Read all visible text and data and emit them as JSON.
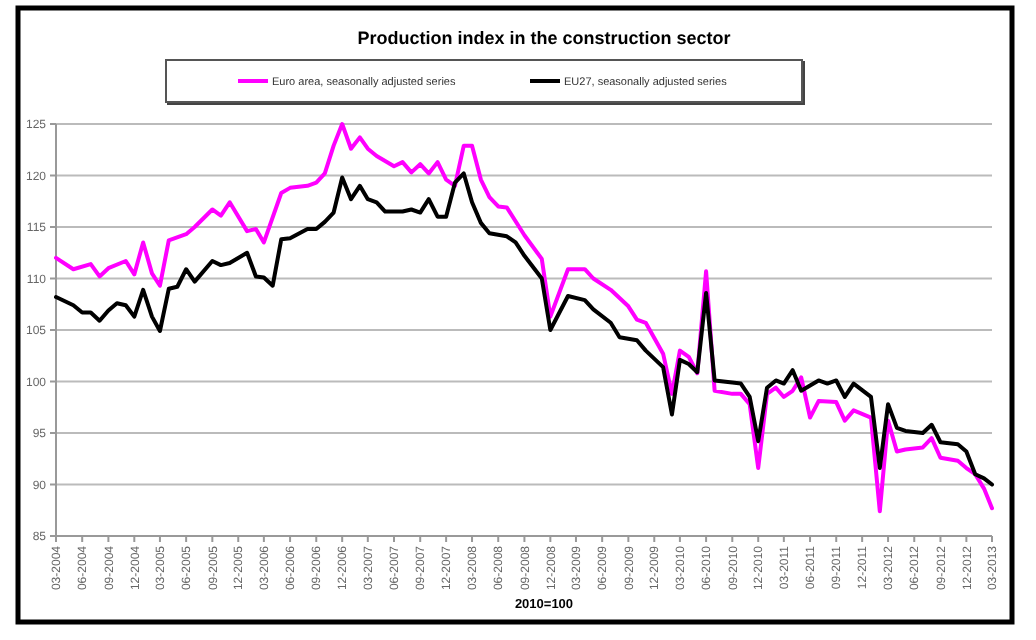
{
  "chart_data": {
    "type": "line",
    "title": "Production index in the construction sector",
    "xlabel": "2010=100",
    "legend": "top",
    "grid": "y",
    "line_style": "solid",
    "marker": "none",
    "xlim": [
      "2004-03",
      "2013-03"
    ],
    "xticks": [
      {
        "value": "2004-03",
        "label": "03-2004"
      },
      {
        "value": "2004-06",
        "label": "06-2004"
      },
      {
        "value": "2004-09",
        "label": "09-2004"
      },
      {
        "value": "2004-12",
        "label": "12-2004"
      },
      {
        "value": "2005-03",
        "label": "03-2005"
      },
      {
        "value": "2005-06",
        "label": "06-2005"
      },
      {
        "value": "2005-09",
        "label": "09-2005"
      },
      {
        "value": "2005-12",
        "label": "12-2005"
      },
      {
        "value": "2006-03",
        "label": "03-2006"
      },
      {
        "value": "2006-06",
        "label": "06-2006"
      },
      {
        "value": "2006-09",
        "label": "09-2006"
      },
      {
        "value": "2006-12",
        "label": "12-2006"
      },
      {
        "value": "2007-03",
        "label": "03-2007"
      },
      {
        "value": "2007-06",
        "label": "06-2007"
      },
      {
        "value": "2007-09",
        "label": "09-2007"
      },
      {
        "value": "2007-12",
        "label": "12-2007"
      },
      {
        "value": "2008-03",
        "label": "03-2008"
      },
      {
        "value": "2008-06",
        "label": "06-2008"
      },
      {
        "value": "2008-09",
        "label": "09-2008"
      },
      {
        "value": "2008-12",
        "label": "12-2008"
      },
      {
        "value": "2009-03",
        "label": "03-2009"
      },
      {
        "value": "2009-06",
        "label": "06-2009"
      },
      {
        "value": "2009-09",
        "label": "09-2009"
      },
      {
        "value": "2009-12",
        "label": "12-2009"
      },
      {
        "value": "2010-03",
        "label": "03-2010"
      },
      {
        "value": "2010-06",
        "label": "06-2010"
      },
      {
        "value": "2010-09",
        "label": "09-2010"
      },
      {
        "value": "2010-12",
        "label": "12-2010"
      },
      {
        "value": "2011-03",
        "label": "03-2011"
      },
      {
        "value": "2011-06",
        "label": "06-2011"
      },
      {
        "value": "2011-09",
        "label": "09-2011"
      },
      {
        "value": "2011-12",
        "label": "12-2011"
      },
      {
        "value": "2012-03",
        "label": "03-2012"
      },
      {
        "value": "2012-06",
        "label": "06-2012"
      },
      {
        "value": "2012-09",
        "label": "09-2012"
      },
      {
        "value": "2012-12",
        "label": "12-2012"
      },
      {
        "value": "2013-03",
        "label": "03-2013"
      }
    ],
    "ylim": [
      85,
      125
    ],
    "yticks": [
      85,
      90,
      95,
      100,
      105,
      110,
      115,
      120,
      125
    ],
    "series": [
      {
        "name": "Euro area, seasonally adjusted series",
        "color": "#ff00ff",
        "x": [
          "2004-03",
          "2004-05",
          "2004-07",
          "2004-08",
          "2004-09",
          "2004-11",
          "2004-12",
          "2005-01",
          "2005-02",
          "2005-03",
          "2005-04",
          "2005-06",
          "2005-07",
          "2005-09",
          "2005-10",
          "2005-11",
          "2006-01",
          "2006-02",
          "2006-03",
          "2006-05",
          "2006-06",
          "2006-08",
          "2006-09",
          "2006-10",
          "2006-11",
          "2006-12",
          "2007-01",
          "2007-02",
          "2007-03",
          "2007-04",
          "2007-06",
          "2007-07",
          "2007-08",
          "2007-09",
          "2007-10",
          "2007-11",
          "2007-12",
          "2008-01",
          "2008-02",
          "2008-03",
          "2008-04",
          "2008-05",
          "2008-06",
          "2008-07",
          "2008-09",
          "2008-11",
          "2008-12",
          "2009-02",
          "2009-04",
          "2009-05",
          "2009-07",
          "2009-09",
          "2009-10",
          "2009-11",
          "2010-01",
          "2010-02",
          "2010-03",
          "2010-04",
          "2010-05",
          "2010-06",
          "2010-07",
          "2010-09",
          "2010-10",
          "2010-11",
          "2010-12",
          "2011-01",
          "2011-02",
          "2011-03",
          "2011-04",
          "2011-05",
          "2011-06",
          "2011-07",
          "2011-09",
          "2011-10",
          "2011-11",
          "2012-01",
          "2012-02",
          "2012-03",
          "2012-04",
          "2012-05",
          "2012-07",
          "2012-08",
          "2012-09",
          "2012-11",
          "2012-12",
          "2013-01",
          "2013-02",
          "2013-03"
        ],
        "values": [
          112.0,
          110.9,
          111.4,
          110.2,
          111.0,
          111.7,
          110.4,
          113.5,
          110.5,
          109.3,
          113.7,
          114.3,
          115.0,
          116.7,
          116.1,
          117.4,
          114.6,
          114.8,
          113.5,
          118.3,
          118.8,
          119.0,
          119.3,
          120.2,
          122.9,
          125.0,
          122.6,
          123.7,
          122.6,
          121.9,
          120.9,
          121.3,
          120.3,
          121.1,
          120.2,
          121.3,
          119.6,
          119.0,
          122.9,
          122.9,
          119.6,
          117.9,
          117.0,
          116.9,
          114.2,
          111.9,
          106.3,
          110.9,
          110.9,
          110.0,
          108.9,
          107.3,
          106.0,
          105.7,
          102.7,
          98.8,
          103.0,
          102.4,
          100.8,
          110.7,
          99.1,
          98.8,
          98.8,
          97.8,
          91.6,
          98.8,
          99.4,
          98.5,
          99.1,
          100.4,
          96.5,
          98.1,
          98.0,
          96.2,
          97.2,
          96.5,
          87.4,
          96.2,
          93.2,
          93.4,
          93.6,
          94.5,
          92.6,
          92.3,
          91.6,
          91.0,
          89.6,
          87.7
        ]
      },
      {
        "name": "EU27, seasonally adjusted series",
        "color": "#000000",
        "x": [
          "2004-03",
          "2004-05",
          "2004-06",
          "2004-07",
          "2004-08",
          "2004-09",
          "2004-10",
          "2004-11",
          "2004-12",
          "2005-01",
          "2005-02",
          "2005-03",
          "2005-04",
          "2005-05",
          "2005-06",
          "2005-07",
          "2005-09",
          "2005-10",
          "2005-11",
          "2006-01",
          "2006-02",
          "2006-03",
          "2006-04",
          "2006-05",
          "2006-06",
          "2006-08",
          "2006-09",
          "2006-10",
          "2006-11",
          "2006-12",
          "2007-01",
          "2007-02",
          "2007-03",
          "2007-04",
          "2007-05",
          "2007-07",
          "2007-08",
          "2007-09",
          "2007-10",
          "2007-11",
          "2007-12",
          "2008-01",
          "2008-02",
          "2008-03",
          "2008-04",
          "2008-05",
          "2008-07",
          "2008-08",
          "2008-09",
          "2008-11",
          "2008-12",
          "2009-02",
          "2009-04",
          "2009-05",
          "2009-07",
          "2009-08",
          "2009-10",
          "2009-11",
          "2010-01",
          "2010-02",
          "2010-03",
          "2010-04",
          "2010-05",
          "2010-06",
          "2010-07",
          "2010-09",
          "2010-10",
          "2010-11",
          "2010-12",
          "2011-01",
          "2011-02",
          "2011-03",
          "2011-04",
          "2011-05",
          "2011-07",
          "2011-08",
          "2011-09",
          "2011-10",
          "2011-11",
          "2012-01",
          "2012-02",
          "2012-03",
          "2012-04",
          "2012-05",
          "2012-07",
          "2012-08",
          "2012-09",
          "2012-11",
          "2012-12",
          "2013-01",
          "2013-02",
          "2013-03"
        ],
        "values": [
          108.2,
          107.4,
          106.7,
          106.7,
          105.9,
          106.9,
          107.6,
          107.4,
          106.3,
          108.9,
          106.3,
          104.9,
          109.0,
          109.2,
          110.9,
          109.7,
          111.7,
          111.3,
          111.5,
          112.5,
          110.2,
          110.1,
          109.3,
          113.8,
          113.9,
          114.8,
          114.8,
          115.5,
          116.4,
          119.8,
          117.7,
          119.0,
          117.7,
          117.4,
          116.5,
          116.5,
          116.7,
          116.4,
          117.7,
          116.0,
          116.0,
          119.3,
          120.2,
          117.4,
          115.4,
          114.4,
          114.1,
          113.5,
          112.2,
          110.0,
          105.0,
          108.3,
          107.9,
          107.0,
          105.7,
          104.3,
          104.0,
          103.0,
          101.4,
          96.8,
          102.1,
          101.7,
          100.9,
          108.6,
          100.1,
          99.9,
          99.8,
          98.5,
          94.2,
          99.4,
          100.1,
          99.8,
          101.1,
          99.1,
          100.1,
          99.8,
          100.1,
          98.5,
          99.8,
          98.5,
          91.6,
          97.8,
          95.5,
          95.2,
          95.0,
          95.8,
          94.1,
          93.9,
          93.2,
          91.0,
          90.6,
          90.0
        ]
      }
    ]
  }
}
